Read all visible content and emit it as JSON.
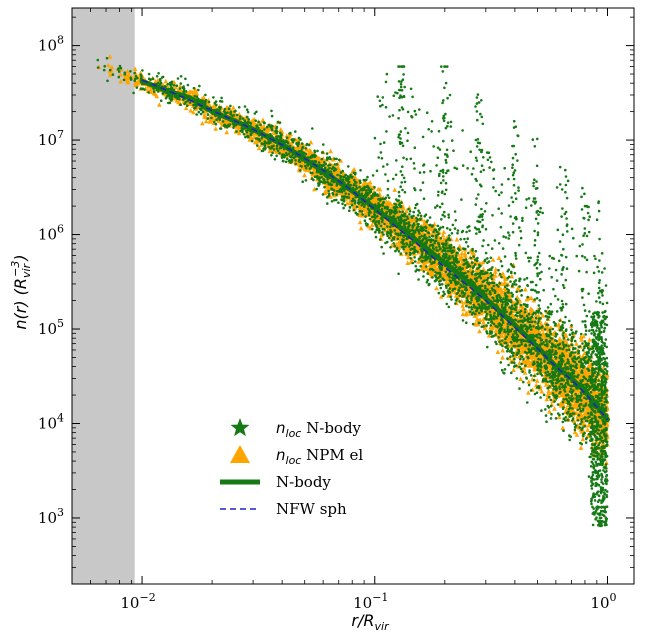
{
  "chart_data": {
    "type": "scatter",
    "xscale": "log",
    "yscale": "log",
    "xlim": [
      0.005,
      1.3
    ],
    "ylim": [
      200,
      250000000
    ],
    "x_ticks": [
      {
        "value": 0.01,
        "base": "10",
        "exp": "−2"
      },
      {
        "value": 0.1,
        "base": "10",
        "exp": "−1"
      },
      {
        "value": 1,
        "base": "10",
        "exp": "0"
      }
    ],
    "y_ticks": [
      {
        "value": 1000,
        "base": "10",
        "exp": "3"
      },
      {
        "value": 10000,
        "base": "10",
        "exp": "4"
      },
      {
        "value": 100000,
        "base": "10",
        "exp": "5"
      },
      {
        "value": 1000000,
        "base": "10",
        "exp": "6"
      },
      {
        "value": 10000000,
        "base": "10",
        "exp": "7"
      },
      {
        "value": 100000000,
        "base": "10",
        "exp": "8"
      }
    ],
    "xlabel": {
      "main": "r/R",
      "sub": "vir"
    },
    "ylabel": {
      "main": "n(r) (R",
      "sub": "vir",
      "sup": "−3",
      "close": ")"
    },
    "shaded_region": {
      "x_from": 0.005,
      "x_to": 0.0093,
      "color": "#c8c8c8"
    },
    "legend_position": "lower-center",
    "legend": [
      {
        "name_main": "n",
        "name_sub": "loc",
        "name_rest": " N-body",
        "marker": "star",
        "color": "#157a15"
      },
      {
        "name_main": "n",
        "name_sub": "loc",
        "name_rest": " NPM el",
        "marker": "triangle",
        "color": "#ffa500"
      },
      {
        "name_main": "",
        "name_sub": "",
        "name_rest": "N-body",
        "marker": "thick-line",
        "color": "#157a15"
      },
      {
        "name_main": "",
        "name_sub": "",
        "name_rest": "NFW sph",
        "marker": "dashed-line",
        "color": "#2020c0"
      }
    ],
    "series": [
      {
        "name": "N-body",
        "kind": "line",
        "color": "#157a15",
        "x": [
          0.01,
          0.0125,
          0.016,
          0.02,
          0.025,
          0.03,
          0.04,
          0.05,
          0.06,
          0.07,
          0.08,
          0.1,
          0.12,
          0.15,
          0.2,
          0.25,
          0.3,
          0.4,
          0.5,
          0.6,
          0.7,
          0.8,
          1.0
        ],
        "y": [
          42000000,
          34000000,
          28000000,
          20000000,
          16000000,
          13000000,
          9000000,
          6300000,
          4700000,
          3600000,
          2900000,
          1900000,
          1350000,
          880000,
          500000,
          320000,
          210000,
          110000,
          65000,
          40000,
          30000,
          22000,
          11000
        ]
      },
      {
        "name": "NFW sph",
        "kind": "line",
        "color": "#2020c0",
        "x": [
          0.01,
          0.0125,
          0.016,
          0.02,
          0.025,
          0.03,
          0.04,
          0.05,
          0.06,
          0.07,
          0.08,
          0.1,
          0.12,
          0.15,
          0.2,
          0.25,
          0.3,
          0.4,
          0.5,
          0.6,
          0.7,
          0.8,
          1.0
        ],
        "y": [
          43000000,
          34500000,
          26500000,
          20500000,
          16000000,
          13000000,
          8900000,
          6400000,
          4800000,
          3700000,
          2900000,
          1850000,
          1280000,
          820000,
          450000,
          290000,
          200000,
          104000,
          62000,
          40000,
          29000,
          21000,
          11000
        ]
      }
    ]
  }
}
